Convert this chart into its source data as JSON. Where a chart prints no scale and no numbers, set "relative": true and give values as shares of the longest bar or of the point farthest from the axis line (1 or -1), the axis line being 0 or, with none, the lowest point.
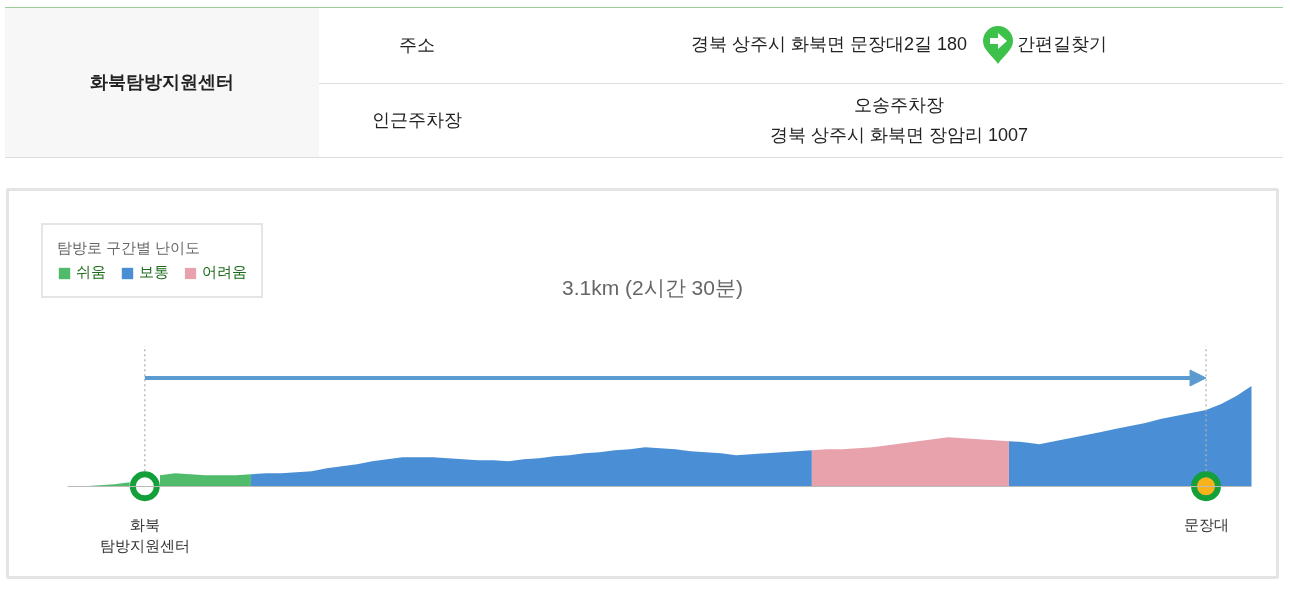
{
  "chart_data": [
    {
      "type": "other",
      "annotations": [
        "화북탐방지원센터",
        "주소",
        "경북 상주시 화북면 문장대2길 180",
        "간편길찾기",
        "인근주차장",
        "오송주차장\n경북 상주시 화북면 장암리 1007"
      ]
    },
    {
      "type": "area",
      "relative": true,
      "legend_title": "탐방로 구간별 난이도",
      "legend": "top left",
      "categories": [
        null,
        null,
        null,
        null,
        "화북\n탐방지원센터",
        null,
        null,
        null,
        null,
        null,
        null,
        null,
        null,
        null,
        null,
        null,
        null,
        null,
        null,
        null,
        null,
        null,
        null,
        null,
        null,
        null,
        null,
        null,
        null,
        null,
        null,
        null,
        null,
        null,
        null,
        null,
        null,
        null,
        null,
        null,
        null,
        null,
        null,
        null,
        null,
        null,
        null,
        null,
        null,
        null,
        null,
        null,
        null,
        null,
        null,
        null,
        null,
        null,
        null,
        null,
        null,
        null,
        null,
        null,
        null,
        null,
        null,
        null,
        null,
        null,
        null,
        null,
        null,
        null,
        "문장대",
        null,
        null,
        null
      ],
      "series": [
        {
          "name": "쉬움",
          "color": "#4fbb6b",
          "values": [
            0,
            0.01,
            0.02,
            0.04,
            null,
            0.11,
            0.13,
            0.12,
            0.11,
            0.11,
            0.11,
            0.12,
            null,
            null,
            null,
            null,
            null,
            null,
            null,
            null,
            null,
            null,
            null,
            null,
            null,
            null,
            null,
            null,
            null,
            null,
            null,
            null,
            null,
            null,
            null,
            null,
            null,
            null,
            null,
            null,
            null,
            null,
            null,
            null,
            null,
            null,
            null,
            null,
            null,
            null,
            null,
            null,
            null,
            null,
            null,
            null,
            null,
            null,
            null,
            null,
            null,
            null,
            null,
            null,
            null,
            null,
            null,
            null,
            null,
            null,
            null,
            null,
            null,
            null,
            null,
            null,
            null,
            null
          ]
        },
        {
          "name": "보통",
          "color": "#4a8fd5",
          "values": [
            null,
            null,
            null,
            null,
            null,
            null,
            null,
            null,
            null,
            null,
            null,
            0.12,
            0.13,
            0.13,
            0.14,
            0.15,
            0.18,
            0.2,
            0.22,
            0.25,
            0.27,
            0.29,
            0.29,
            0.29,
            0.28,
            0.27,
            0.26,
            0.26,
            0.25,
            0.27,
            0.28,
            0.3,
            0.31,
            0.33,
            0.34,
            0.36,
            0.37,
            0.39,
            0.38,
            0.37,
            0.35,
            0.34,
            0.33,
            0.31,
            0.32,
            0.33,
            0.34,
            0.35,
            0.36,
            null,
            null,
            null,
            null,
            null,
            null,
            null,
            null,
            null,
            null,
            null,
            null,
            0.45,
            0.44,
            0.42,
            0.45,
            0.48,
            0.51,
            0.54,
            0.57,
            0.6,
            0.63,
            0.67,
            0.7,
            0.73,
            0.76,
            0.82,
            0.9,
            1.0
          ]
        },
        {
          "name": "어려움",
          "color": "#e8a2ac",
          "values": [
            null,
            null,
            null,
            null,
            null,
            null,
            null,
            null,
            null,
            null,
            null,
            null,
            null,
            null,
            null,
            null,
            null,
            null,
            null,
            null,
            null,
            null,
            null,
            null,
            null,
            null,
            null,
            null,
            null,
            null,
            null,
            null,
            null,
            null,
            null,
            null,
            null,
            null,
            null,
            null,
            null,
            null,
            null,
            null,
            null,
            null,
            null,
            null,
            0.36,
            0.37,
            0.37,
            0.38,
            0.39,
            0.41,
            0.43,
            0.45,
            0.47,
            0.49,
            0.48,
            0.47,
            0.46,
            0.45,
            null,
            null,
            null,
            null,
            null,
            null,
            null,
            null,
            null,
            null,
            null,
            null,
            null,
            null,
            null,
            null
          ]
        },
        {
          "type": "scatter",
          "x": [
            "화북\n탐방지원센터",
            "문장대"
          ],
          "values": [
            0,
            0
          ],
          "color": "#13a03a",
          "colors": [
            "#ffffff",
            "#f8b31c"
          ],
          "marker": "circle"
        }
      ],
      "ref_lines": [
        {
          "axis": "x",
          "value": "화북\n탐방지원센터",
          "line_style": "dotted",
          "color": "#b0b0b0"
        },
        {
          "axis": "x",
          "value": "문장대",
          "line_style": "dotted",
          "color": "#b0b0b0"
        }
      ],
      "annotations": [
        "3.1km (2시간 30분)"
      ]
    }
  ]
}
